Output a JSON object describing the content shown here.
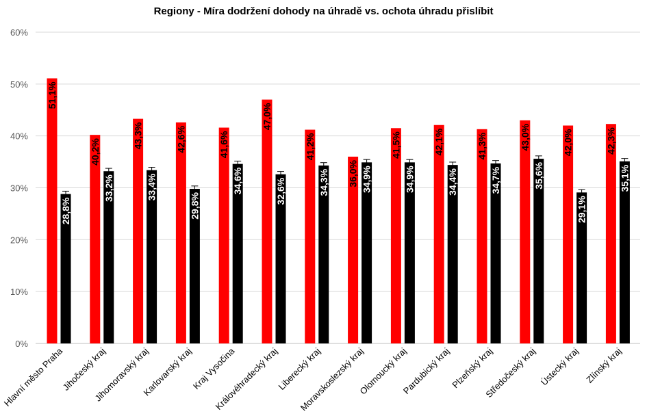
{
  "chart_data": {
    "type": "bar",
    "title": "Regiony - Míra dodržení dohody na úhradě vs. ochota úhradu přislíbit",
    "xlabel": "",
    "ylabel": "",
    "ylim": [
      0,
      60
    ],
    "yticks": [
      "0%",
      "10%",
      "20%",
      "30%",
      "40%",
      "50%",
      "60%"
    ],
    "grid": true,
    "legend": "none",
    "categories": [
      "Hlavní město Praha",
      "Jihočeský kraj",
      "Jihomoravský kraj",
      "Karlovarský kraj",
      "Kraj Vysočina",
      "Královéhradecký kraj",
      "Liberecký kraj",
      "Moravskoslezský kraj",
      "Olomoucký kraj",
      "Pardubický kraj",
      "Plzeňský kraj",
      "Středočeský kraj",
      "Ústecký kraj",
      "Zlínský kraj"
    ],
    "series": [
      {
        "color": "#ff0000",
        "label_color": "#000000",
        "values": [
          51.1,
          40.2,
          43.3,
          42.6,
          41.6,
          47.0,
          41.2,
          36.0,
          41.5,
          42.1,
          41.3,
          43.0,
          42.0,
          42.3
        ],
        "labels": [
          "51,1%",
          "40,2%",
          "43,3%",
          "42,6%",
          "41,6%",
          "47,0%",
          "41,2%",
          "36,0%",
          "41,5%",
          "42,1%",
          "41,3%",
          "43,0%",
          "42,0%",
          "42,3%"
        ]
      },
      {
        "color": "#000000",
        "label_color": "#ffffff",
        "error_bars": true,
        "values": [
          28.8,
          33.2,
          33.4,
          29.8,
          34.6,
          32.6,
          34.3,
          34.9,
          34.9,
          34.4,
          34.7,
          35.6,
          29.1,
          35.1
        ],
        "labels": [
          "28,8%",
          "33,2%",
          "33,4%",
          "29,8%",
          "34,6%",
          "32,6%",
          "34,3%",
          "34,9%",
          "34,9%",
          "34,4%",
          "34,7%",
          "35,6%",
          "29,1%",
          "35,1%"
        ]
      }
    ]
  }
}
